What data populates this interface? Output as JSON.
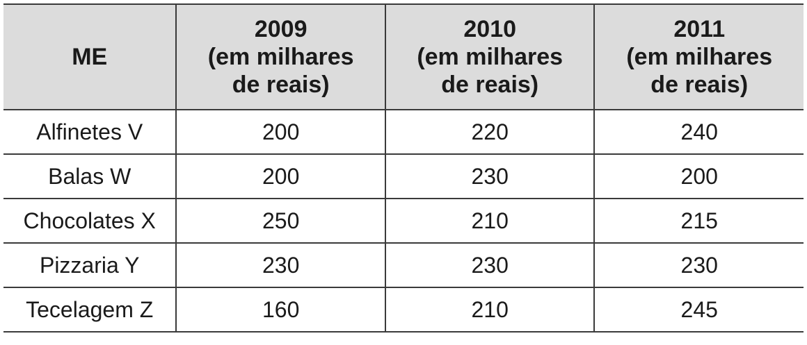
{
  "chart_data": {
    "type": "table",
    "columns": [
      {
        "label": "ME"
      },
      {
        "year": "2009",
        "unit_line1": "(em milhares",
        "unit_line2": "de reais)"
      },
      {
        "year": "2010",
        "unit_line1": "(em milhares",
        "unit_line2": "de reais)"
      },
      {
        "year": "2011",
        "unit_line1": "(em milhares",
        "unit_line2": "de reais)"
      }
    ],
    "rows": [
      {
        "name": "Alfinetes V",
        "values": [
          "200",
          "220",
          "240"
        ]
      },
      {
        "name": "Balas W",
        "values": [
          "200",
          "230",
          "200"
        ]
      },
      {
        "name": "Chocolates X",
        "values": [
          "250",
          "210",
          "215"
        ]
      },
      {
        "name": "Pizzaria Y",
        "values": [
          "230",
          "230",
          "230"
        ]
      },
      {
        "name": "Tecelagem Z",
        "values": [
          "160",
          "210",
          "245"
        ]
      }
    ]
  },
  "colors": {
    "header_background": "#dcdcdc",
    "border": "#3a3a3a",
    "text": "#1a1a1a"
  }
}
